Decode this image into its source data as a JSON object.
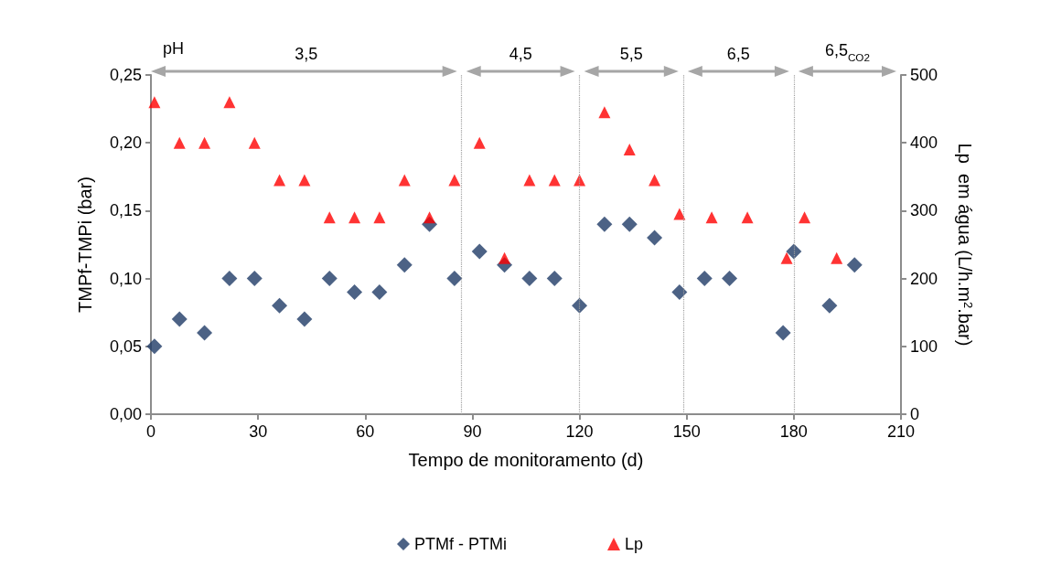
{
  "chart_data": {
    "type": "scatter",
    "xlabel": "Tempo de monitoramento (d)",
    "ylabel": "TMPf-TMPi (bar)",
    "y2label": "Lp  em água (L/h.m$^{2}$.bar)",
    "x": [
      1,
      8,
      15,
      22,
      29,
      36,
      43,
      50,
      57,
      64,
      71,
      78,
      85,
      92,
      99,
      106,
      113,
      120,
      127,
      134,
      141,
      148,
      155,
      162,
      177,
      180,
      190,
      197
    ],
    "series": [
      {
        "name": "PTMf - PTMi",
        "color": "#1f3b66",
        "marker": "diamond",
        "values": [
          0.05,
          0.07,
          0.06,
          0.1,
          0.1,
          0.08,
          0.07,
          0.1,
          0.09,
          0.09,
          0.11,
          0.14,
          0.1,
          0.12,
          0.11,
          0.1,
          0.1,
          0.08,
          0.14,
          0.14,
          0.13,
          0.09,
          0.1,
          0.1,
          0.06,
          0.12,
          0.08,
          0.11
        ]
      },
      {
        "name": "Lp",
        "color": "#ff0000",
        "marker": "triangle",
        "axis": "y2",
        "x": [
          1,
          8,
          15,
          22,
          29,
          36,
          43,
          50,
          57,
          64,
          71,
          78,
          85,
          92,
          99,
          106,
          113,
          120,
          127,
          134,
          141,
          148,
          157,
          167,
          178,
          183,
          192
        ],
        "values": [
          460,
          400,
          400,
          460,
          400,
          345,
          345,
          290,
          290,
          290,
          345,
          290,
          345,
          400,
          230,
          345,
          345,
          345,
          445,
          390,
          345,
          295,
          290,
          290,
          230,
          290,
          230
        ]
      }
    ],
    "xlim": [
      0,
      210
    ],
    "xticks": [
      0,
      30,
      60,
      90,
      120,
      150,
      180,
      210
    ],
    "ylim": [
      0,
      0.25
    ],
    "yticks": [
      {
        "value": 0,
        "label": "0,00"
      },
      {
        "value": 0.05,
        "label": "0,05"
      },
      {
        "value": 0.1,
        "label": "0,10"
      },
      {
        "value": 0.15,
        "label": "0,15"
      },
      {
        "value": 0.2,
        "label": "0,20"
      },
      {
        "value": 0.25,
        "label": "0,25"
      }
    ],
    "y2lim": [
      0,
      500
    ],
    "y2ticks": [
      0,
      100,
      200,
      300,
      400,
      500
    ],
    "ref_lines": [
      {
        "axis": "x",
        "value": 87,
        "color": "#a0a0a0",
        "line_style": "dotted"
      },
      {
        "axis": "x",
        "value": 120,
        "color": "#a0a0a0",
        "line_style": "dotted"
      },
      {
        "axis": "x",
        "value": 149,
        "color": "#a0a0a0",
        "line_style": "dotted"
      },
      {
        "axis": "x",
        "value": 180,
        "color": "#a0a0a0",
        "line_style": "dotted"
      }
    ],
    "annotations": [
      "pH",
      "3,5",
      "4,5",
      "5,5",
      "6,5",
      "6,5$_{CO2}$"
    ],
    "grid": false,
    "legend": "bottom"
  }
}
